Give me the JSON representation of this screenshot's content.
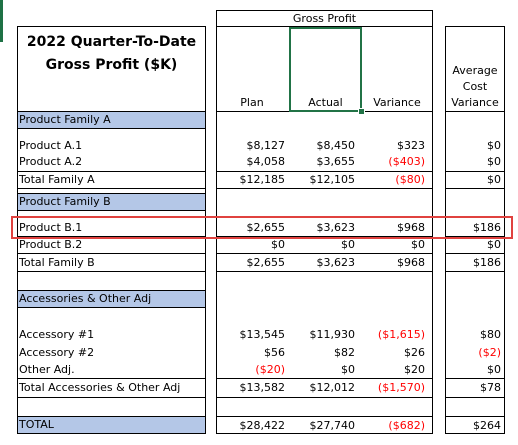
{
  "title": {
    "line1": "2022 Quarter-To-Date",
    "line2": "Gross Profit ($K)"
  },
  "headers": {
    "group": "Gross Profit",
    "plan": "Plan",
    "actual": "Actual",
    "variance": "Variance",
    "avg_cost_1": "Average",
    "avg_cost_2": "Cost",
    "avg_cost_3": "Variance"
  },
  "sections": {
    "a": "Product Family A",
    "b": "Product Family B",
    "c": "Accessories & Other Adj",
    "total": "TOTAL"
  },
  "rows": {
    "a1": {
      "label": "Product A.1",
      "plan": "$8,127",
      "actual": "$8,450",
      "variance": "$323",
      "avg": "$0"
    },
    "a2": {
      "label": "Product A.2",
      "plan": "$4,058",
      "actual": "$3,655",
      "variance": "($403)",
      "avg": "$0"
    },
    "atot": {
      "label": "Total Family A",
      "plan": "$12,185",
      "actual": "$12,105",
      "variance": "($80)",
      "avg": "$0"
    },
    "b1": {
      "label": "Product B.1",
      "plan": "$2,655",
      "actual": "$3,623",
      "variance": "$968",
      "avg": "$186"
    },
    "b2": {
      "label": "Product B.2",
      "plan": "$0",
      "actual": "$0",
      "variance": "$0",
      "avg": "$0"
    },
    "btot": {
      "label": "Total Family B",
      "plan": "$2,655",
      "actual": "$3,623",
      "variance": "$968",
      "avg": "$186"
    },
    "c1": {
      "label": "Accessory #1",
      "plan": "$13,545",
      "actual": "$11,930",
      "variance": "($1,615)",
      "avg": "$80"
    },
    "c2": {
      "label": "Accessory #2",
      "plan": "$56",
      "actual": "$82",
      "variance": "$26",
      "avg": "($2)"
    },
    "c3": {
      "label": "Other Adj.",
      "plan": "($20)",
      "actual": "$0",
      "variance": "$20",
      "avg": "$0"
    },
    "ctot": {
      "label": "Total Accessories & Other Adj",
      "plan": "$13,582",
      "actual": "$12,012",
      "variance": "($1,570)",
      "avg": "$78"
    },
    "total": {
      "plan": "$28,422",
      "actual": "$27,740",
      "variance": "($682)",
      "avg": "$264"
    }
  },
  "colors": {
    "section_band": "#b4c7e7",
    "negative": "#ff0000",
    "highlight_box": "#e0423f",
    "selection": "#217346"
  }
}
